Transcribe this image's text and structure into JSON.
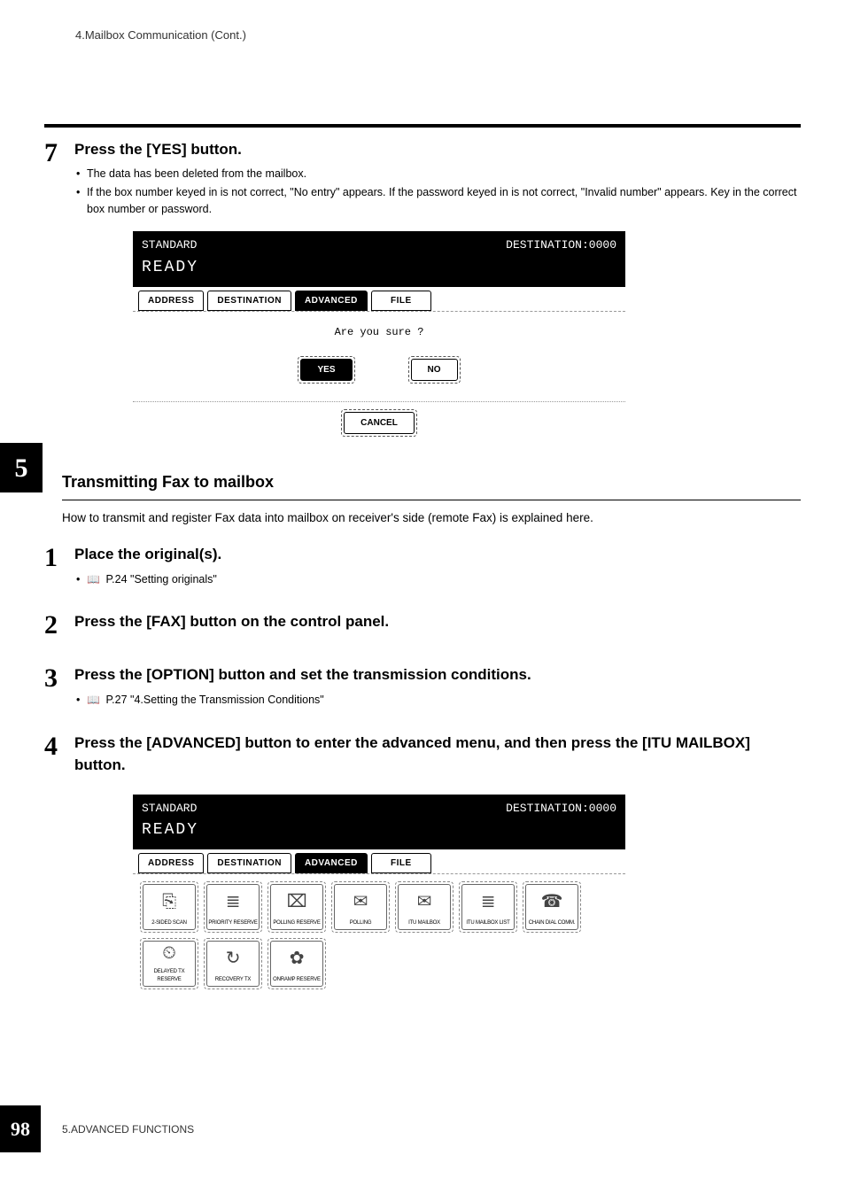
{
  "header": {
    "breadcrumb": "4.Mailbox Communication (Cont.)"
  },
  "chapter_tab": "5",
  "footer": {
    "page": "98",
    "chapter": "5.ADVANCED FUNCTIONS"
  },
  "text_colors": {
    "body": "#000000",
    "muted": "#333333"
  },
  "step7": {
    "num": "7",
    "title": "Press the [YES] button.",
    "bullets": [
      "The data has been deleted from the mailbox.",
      "If the box number keyed in is not correct, \"No entry\" appears. If the password keyed in is not correct, \"Invalid number\" appears. Key in the correct box number or password."
    ]
  },
  "screen1": {
    "top_left": "STANDARD",
    "top_right": "DESTINATION:0000",
    "ready": "READY",
    "tabs": [
      {
        "label": "ADDRESS",
        "active": false
      },
      {
        "label": "DESTINATION",
        "active": false
      },
      {
        "label": "ADVANCED",
        "active": true
      },
      {
        "label": "FILE",
        "active": false
      }
    ],
    "body_prompt": "Are you sure ?",
    "yes_btn": "YES",
    "no_btn": "NO",
    "cancel_btn": "CANCEL"
  },
  "section": {
    "heading": "Transmitting Fax to mailbox",
    "intro": "How to transmit and register Fax data into mailbox on receiver's side (remote Fax) is explained here."
  },
  "step1": {
    "num": "1",
    "title": "Place the original(s).",
    "ref": "P.24 \"Setting originals\""
  },
  "step2": {
    "num": "2",
    "title": "Press the [FAX] button on the control panel."
  },
  "step3": {
    "num": "3",
    "title": "Press the [OPTION] button and set the transmission conditions.",
    "ref": "P.27 \"4.Setting the Transmission Conditions\""
  },
  "step4": {
    "num": "4",
    "title": "Press the [ADVANCED] button to enter the advanced menu, and then press the [ITU MAILBOX] button."
  },
  "screen2": {
    "top_left": "STANDARD",
    "top_right": "DESTINATION:0000",
    "ready": "READY",
    "tabs": [
      {
        "label": "ADDRESS",
        "active": false
      },
      {
        "label": "DESTINATION",
        "active": false
      },
      {
        "label": "ADVANCED",
        "active": true
      },
      {
        "label": "FILE",
        "active": false
      }
    ],
    "row1": [
      {
        "label": "2-SIDED SCAN",
        "glyph": "⎘"
      },
      {
        "label": "PRIORITY RESERVE",
        "glyph": "≣"
      },
      {
        "label": "POLLING RESERVE",
        "glyph": "⌧"
      },
      {
        "label": "POLLING",
        "glyph": "✉"
      },
      {
        "label": "ITU MAILBOX",
        "glyph": "✉"
      },
      {
        "label": "ITU MAILBOX LIST",
        "glyph": "≣"
      },
      {
        "label": "CHAIN DIAL COMM.",
        "glyph": "☎"
      }
    ],
    "row2": [
      {
        "label": "DELAYED TX RESERVE",
        "glyph": "⏲"
      },
      {
        "label": "RECOVERY TX",
        "glyph": "↻"
      },
      {
        "label": "ONRAMP RESERVE",
        "glyph": "✿"
      }
    ]
  }
}
